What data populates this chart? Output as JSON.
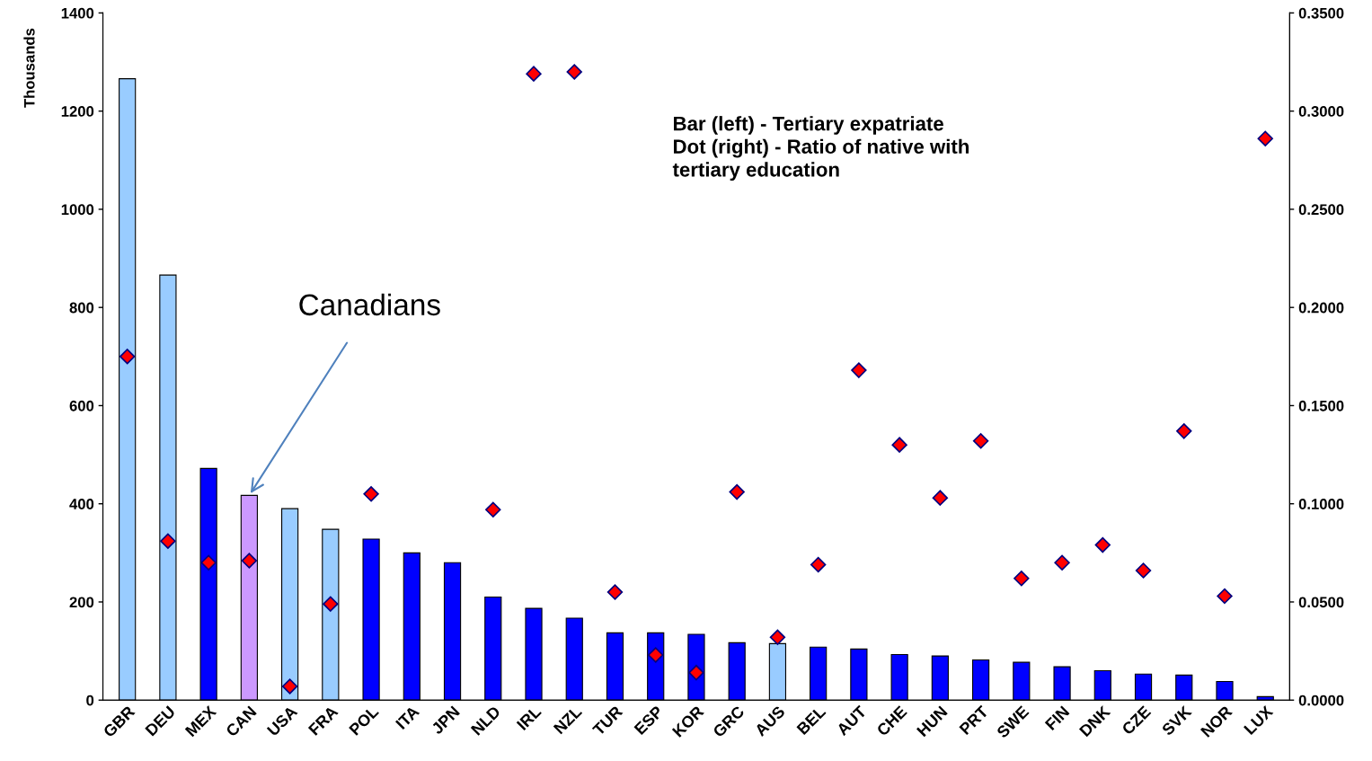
{
  "chart_data": {
    "type": "bar",
    "categories": [
      "GBR",
      "DEU",
      "MEX",
      "CAN",
      "USA",
      "FRA",
      "POL",
      "ITA",
      "JPN",
      "NLD",
      "IRL",
      "NZL",
      "TUR",
      "ESP",
      "KOR",
      "GRC",
      "AUS",
      "BEL",
      "AUT",
      "CHE",
      "HUN",
      "PRT",
      "SWE",
      "FIN",
      "DNK",
      "CZE",
      "SVK",
      "NOR",
      "LUX"
    ],
    "ylabel": "Thousands",
    "ylim": [
      0,
      1400
    ],
    "yticks": [
      0,
      200,
      400,
      600,
      800,
      1000,
      1200,
      1400
    ],
    "y2lim": [
      0,
      0.35
    ],
    "y2ticks": [
      {
        "value": 0,
        "label": "0.0000"
      },
      {
        "value": 0.05,
        "label": "0.0500"
      },
      {
        "value": 0.1,
        "label": "0.1000"
      },
      {
        "value": 0.15,
        "label": "0.1500"
      },
      {
        "value": 0.2,
        "label": "0.2000"
      },
      {
        "value": 0.25,
        "label": "0.2500"
      },
      {
        "value": 0.3,
        "label": "0.3000"
      },
      {
        "value": 0.35,
        "label": "0.3500"
      }
    ],
    "grid": false,
    "legend": false,
    "series": [
      {
        "colors": [
          "#99ccff",
          "#99ccff",
          "#0000ff",
          "#cc99ff",
          "#99ccff",
          "#99ccff",
          "#0000ff",
          "#0000ff",
          "#0000ff",
          "#0000ff",
          "#0000ff",
          "#0000ff",
          "#0000ff",
          "#0000ff",
          "#0000ff",
          "#0000ff",
          "#99ccff",
          "#0000ff",
          "#0000ff",
          "#0000ff",
          "#0000ff",
          "#0000ff",
          "#0000ff",
          "#0000ff",
          "#0000ff",
          "#0000ff",
          "#0000ff",
          "#0000ff",
          "#0000ff"
        ],
        "values": [
          1266,
          866,
          472,
          417,
          390,
          348,
          328,
          300,
          280,
          210,
          187,
          167,
          137,
          137,
          134,
          117,
          115,
          108,
          104,
          93,
          90,
          82,
          77,
          68,
          60,
          53,
          51,
          38,
          7
        ]
      },
      {
        "type": "scatter",
        "axis": "y2",
        "color": "#ff0000",
        "marker": "diamond",
        "values": [
          0.175,
          0.081,
          0.07,
          0.071,
          0.007,
          0.049,
          0.105,
          null,
          null,
          0.097,
          0.319,
          0.32,
          0.055,
          0.023,
          0.014,
          0.106,
          0.032,
          0.069,
          0.168,
          0.13,
          0.103,
          0.132,
          0.062,
          0.07,
          0.079,
          0.066,
          0.137,
          0.053,
          0.286
        ]
      }
    ],
    "annotations": [
      "Bar (left) - Tertiary expatriate\nDot (right) - Ratio of native with\ntertiary education",
      {
        "text": "Canadians",
        "x": "CAN",
        "y": 417
      }
    ]
  }
}
